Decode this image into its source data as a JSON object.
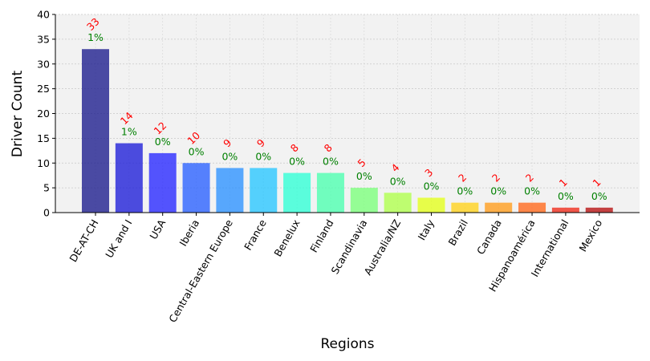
{
  "chart_data": {
    "type": "bar",
    "xlabel": "Regions",
    "ylabel": "Driver Count",
    "categories": [
      "DE-AT-CH",
      "UK and I",
      "USA",
      "Iberia",
      "Central-Eastern Europe",
      "France",
      "Benelux",
      "Finland",
      "Scandinavia",
      "Australia/NZ",
      "Italy",
      "Brazil",
      "Canada",
      "Hispanoamérica",
      "International",
      "Mexico"
    ],
    "values": [
      33,
      14,
      12,
      10,
      9,
      9,
      8,
      8,
      5,
      4,
      3,
      2,
      2,
      2,
      1,
      1
    ],
    "percent_labels": [
      "1%",
      "1%",
      "0%",
      "0%",
      "0%",
      "0%",
      "0%",
      "0%",
      "0%",
      "0%",
      "0%",
      "0%",
      "0%",
      "0%",
      "0%",
      "0%"
    ],
    "bar_colors": [
      "#1f1f8f",
      "#2020d8",
      "#2a2aff",
      "#2d63ff",
      "#2f93ff",
      "#2cc7ff",
      "#33ffd6",
      "#4fffb0",
      "#7dff7d",
      "#b0ff4f",
      "#e3ff1e",
      "#ffd21e",
      "#ff9d1e",
      "#ff6a1e",
      "#ef2e1e",
      "#b81414"
    ],
    "bar_opacity": 0.8,
    "count_label_color": "#ff0000",
    "percent_label_color": "#008000",
    "plot_background": "#f2f2f2",
    "ylim": [
      0,
      40
    ],
    "yticks": [
      0,
      5,
      10,
      15,
      20,
      25,
      30,
      35,
      40
    ],
    "grid": true
  }
}
